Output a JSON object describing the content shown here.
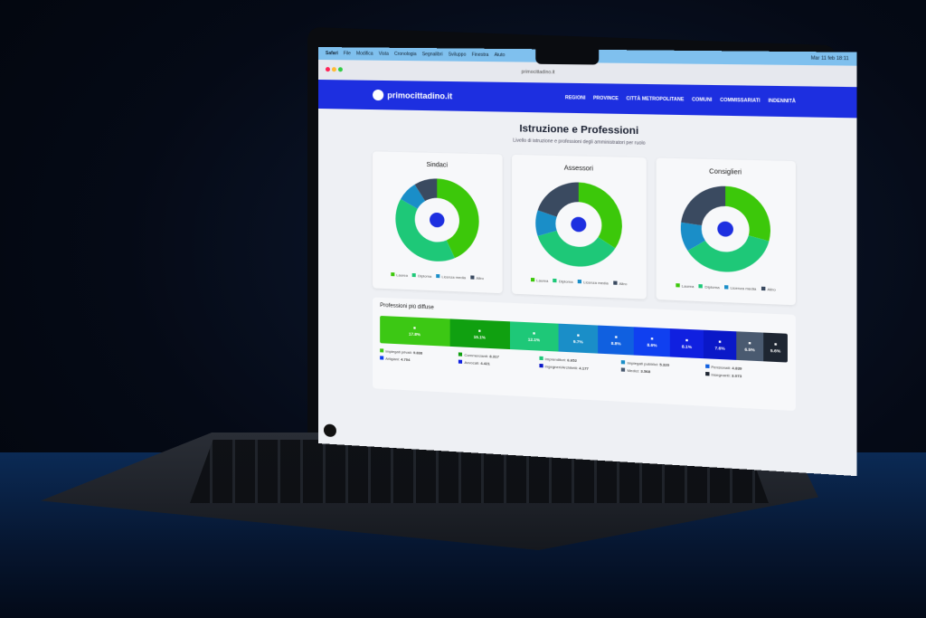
{
  "menubar": {
    "items": [
      "Safari",
      "File",
      "Modifica",
      "Vista",
      "Cronologia",
      "Segnalibri",
      "Sviluppo",
      "Finestra",
      "Aiuto"
    ],
    "clock": "Mar 11 feb 18:11"
  },
  "browser": {
    "url": "primocittadino.it"
  },
  "site": {
    "logo": "primocittadino.it",
    "nav": [
      "REGIONI",
      "PROVINCE",
      "CITTÀ METROPOLITANE",
      "COMUNI",
      "COMMISSARIATI",
      "INDENNITÀ"
    ]
  },
  "page": {
    "title": "Istruzione e Professioni",
    "subtitle": "Livello di istruzione e professioni degli amministratori per ruolo"
  },
  "chart_data": [
    {
      "type": "pie",
      "title": "Sindaci",
      "categories": [
        "Laurea",
        "Diploma",
        "Licenza media",
        "Altro"
      ],
      "values": [
        43,
        40,
        8,
        9
      ],
      "colors": [
        "#3cc80a",
        "#1ec878",
        "#1a8ec8",
        "#3a4a60"
      ]
    },
    {
      "type": "pie",
      "title": "Assessori",
      "categories": [
        "Laurea",
        "Diploma",
        "Licenza media",
        "Altro"
      ],
      "values": [
        34,
        36,
        10,
        20
      ],
      "colors": [
        "#3cc80a",
        "#1ec878",
        "#1a8ec8",
        "#3a4a60"
      ]
    },
    {
      "type": "pie",
      "title": "Consiglieri",
      "categories": [
        "Laurea",
        "Diploma",
        "Licenza media",
        "Altro"
      ],
      "values": [
        29,
        37,
        11,
        23
      ],
      "colors": [
        "#3cc80a",
        "#1ec878",
        "#1a8ec8",
        "#3a4a60"
      ]
    },
    {
      "type": "bar",
      "title": "Professioni più diffuse",
      "categories": [
        "Impiegati privati",
        "Commercianti",
        "Imprenditori",
        "Impiegati pubblici",
        "Pensionati",
        "Artigiani",
        "Avvocati",
        "Ingegneri/Architetti",
        "Medici",
        "Insegnanti"
      ],
      "values": [
        17.8,
        15.1,
        12.1,
        9.7,
        8.8,
        8.6,
        8.1,
        7.6,
        6.5,
        5.6
      ],
      "labels": [
        "17.8%",
        "15.1%",
        "12.1%",
        "9.7%",
        "8.8%",
        "8.6%",
        "8.1%",
        "7.6%",
        "6.5%",
        "5.6%"
      ],
      "counts": [
        "9.838",
        "8.317",
        "6.652",
        "5.320",
        "4.839",
        "4.704",
        "4.421",
        "4.177",
        "3.568",
        "3.073"
      ],
      "colors": [
        "#3cc814",
        "#10a010",
        "#1ec878",
        "#1a8ec8",
        "#1060e0",
        "#1040f0",
        "#1020e0",
        "#0a18c8",
        "#4a5a70",
        "#1e2632"
      ]
    }
  ]
}
